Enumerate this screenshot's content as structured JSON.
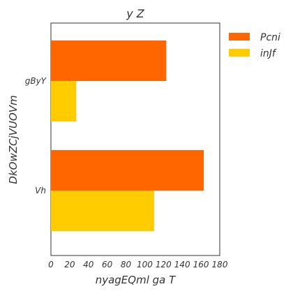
{
  "chart_data": {
    "type": "bar",
    "orientation": "horizontal",
    "title": "y Z",
    "xlabel": "nyagEQml ga T",
    "ylabel": "DkOwZCjVUOVm",
    "categories": [
      "gByY",
      "Vh"
    ],
    "series": [
      {
        "name": "Pcni",
        "values": [
          123,
          163
        ],
        "color": "#ff6600"
      },
      {
        "name": "inJf",
        "values": [
          27,
          110
        ],
        "color": "#ffcc00"
      }
    ],
    "xlim": [
      0,
      180
    ],
    "xticks": [
      "0",
      "20",
      "40",
      "60",
      "80",
      "100",
      "120",
      "140",
      "160",
      "180"
    ],
    "grid": false,
    "legend_position": "outside-top-right"
  }
}
